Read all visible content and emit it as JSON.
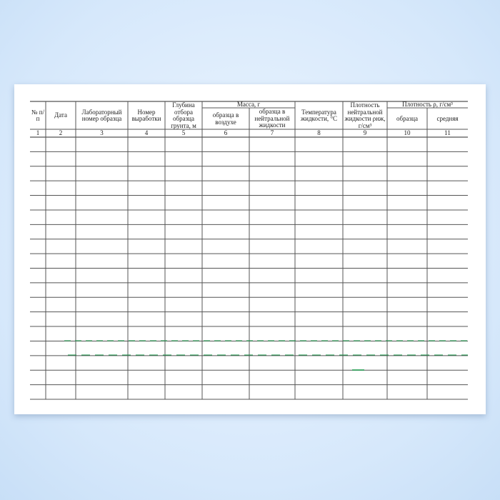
{
  "table": {
    "headers": [
      "№ п/п",
      "Дата",
      "Лабораторный номер образца",
      "Номер выработки",
      "Глубина отбора образца грунта, м",
      "образца в воздухе",
      "образца в нейтральной жидкости",
      "Температура жидкости, °С",
      "Плотность нейтральной жидкости ρнж, г/см³",
      "образца",
      "средняя"
    ],
    "group_headers": {
      "mass": "Масса, г",
      "density": "Плотность ρ, г/см³"
    },
    "column_numbers": [
      "1",
      "2",
      "3",
      "4",
      "5",
      "6",
      "7",
      "8",
      "9",
      "10",
      "11"
    ],
    "empty_rows": 18
  },
  "colors": {
    "background": "#d6e8fb",
    "lines": "#555555",
    "artifact": "#1a9a4a"
  }
}
